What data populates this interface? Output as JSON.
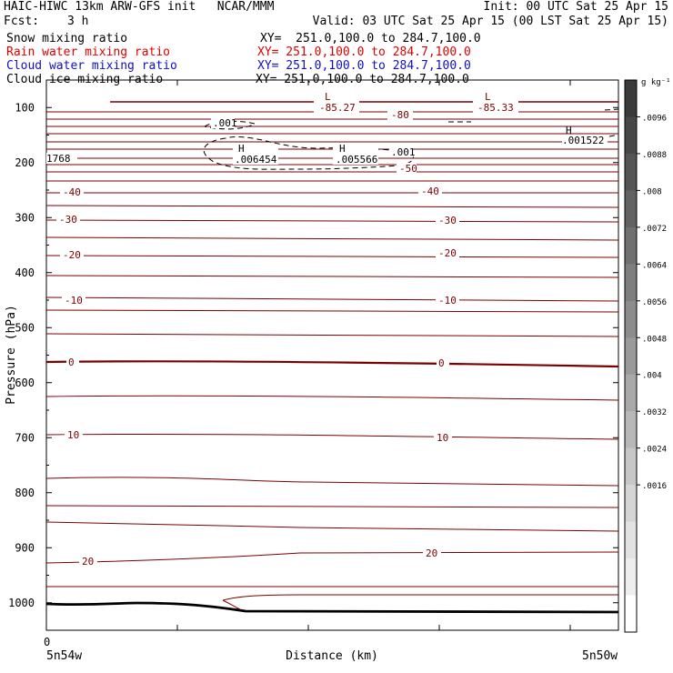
{
  "header": {
    "title_left": "HAIC-HIWC 13km ARW-GFS init   NCAR/MMM",
    "init": "Init: 00 UTC Sat 25 Apr 15",
    "fcst_label": "Fcst:",
    "fcst_value": "3 h",
    "valid": "Valid: 03 UTC Sat 25 Apr 15 (00 LST Sat 25 Apr 15)"
  },
  "fields": [
    {
      "label": "Snow mixing ratio",
      "xy": "XY=  251.0,100.0 to 284.7,100.0",
      "color": "#000000"
    },
    {
      "label": "Rain water mixing ratio",
      "xy": "XY= 251.0,100.0 to 284.7,100.0",
      "color": "#e00000"
    },
    {
      "label": "Cloud water mixing ratio",
      "xy": "XY= 251.0,100.0 to 284.7,100.0",
      "color": "#1010c0"
    },
    {
      "label": "Cloud ice mixing ratio",
      "xy": "XY= 251.0,100.0 to 284.7,100.0",
      "color": "#000000"
    }
  ],
  "chart_data": {
    "type": "contour",
    "ylabel": "Pressure (hPa)",
    "xlabel": "Distance (km)",
    "ylim": [
      1050,
      50
    ],
    "yticks": [
      100,
      200,
      300,
      400,
      500,
      600,
      700,
      800,
      900,
      1000
    ],
    "xtick_labels": {
      "origin": "0",
      "left": "5n54w",
      "right": "5n50w"
    },
    "colorbar": {
      "unit": "g kg⁻¹",
      "ticks": [
        ".0096",
        ".0088",
        ".008",
        ".0072",
        ".0064",
        ".0056",
        ".0048",
        ".004",
        ".0032",
        ".0024",
        ".0016"
      ],
      "colors": [
        "#3a3a3a",
        "#474747",
        "#545454",
        "#626262",
        "#707070",
        "#7e7e7e",
        "#8c8c8c",
        "#9a9a9a",
        "#a9a9a9",
        "#b8b8b8",
        "#c7c7c7",
        "#d5d5d5",
        "#e2e2e2",
        "#eeeeee",
        "#ffffff"
      ]
    },
    "temperature_contour_labels": [
      "-80",
      "-50",
      "-40",
      "-40",
      "-30",
      "-30",
      "-20",
      "-20",
      "-10",
      "-10",
      "0",
      "0",
      "10",
      "10",
      "20",
      "20"
    ],
    "extrema": [
      {
        "type": "L",
        "value": "-85.27"
      },
      {
        "type": "L",
        "value": "-85.33"
      },
      {
        "type": "H",
        "value": ".001522"
      },
      {
        "type": "H",
        "value": ".006454"
      },
      {
        "type": "H",
        "value": ".005566"
      }
    ],
    "partial_labels": [
      "1768",
      ".001",
      ".001"
    ],
    "contour_color": "#7a0000",
    "ground_color": "#000000"
  }
}
